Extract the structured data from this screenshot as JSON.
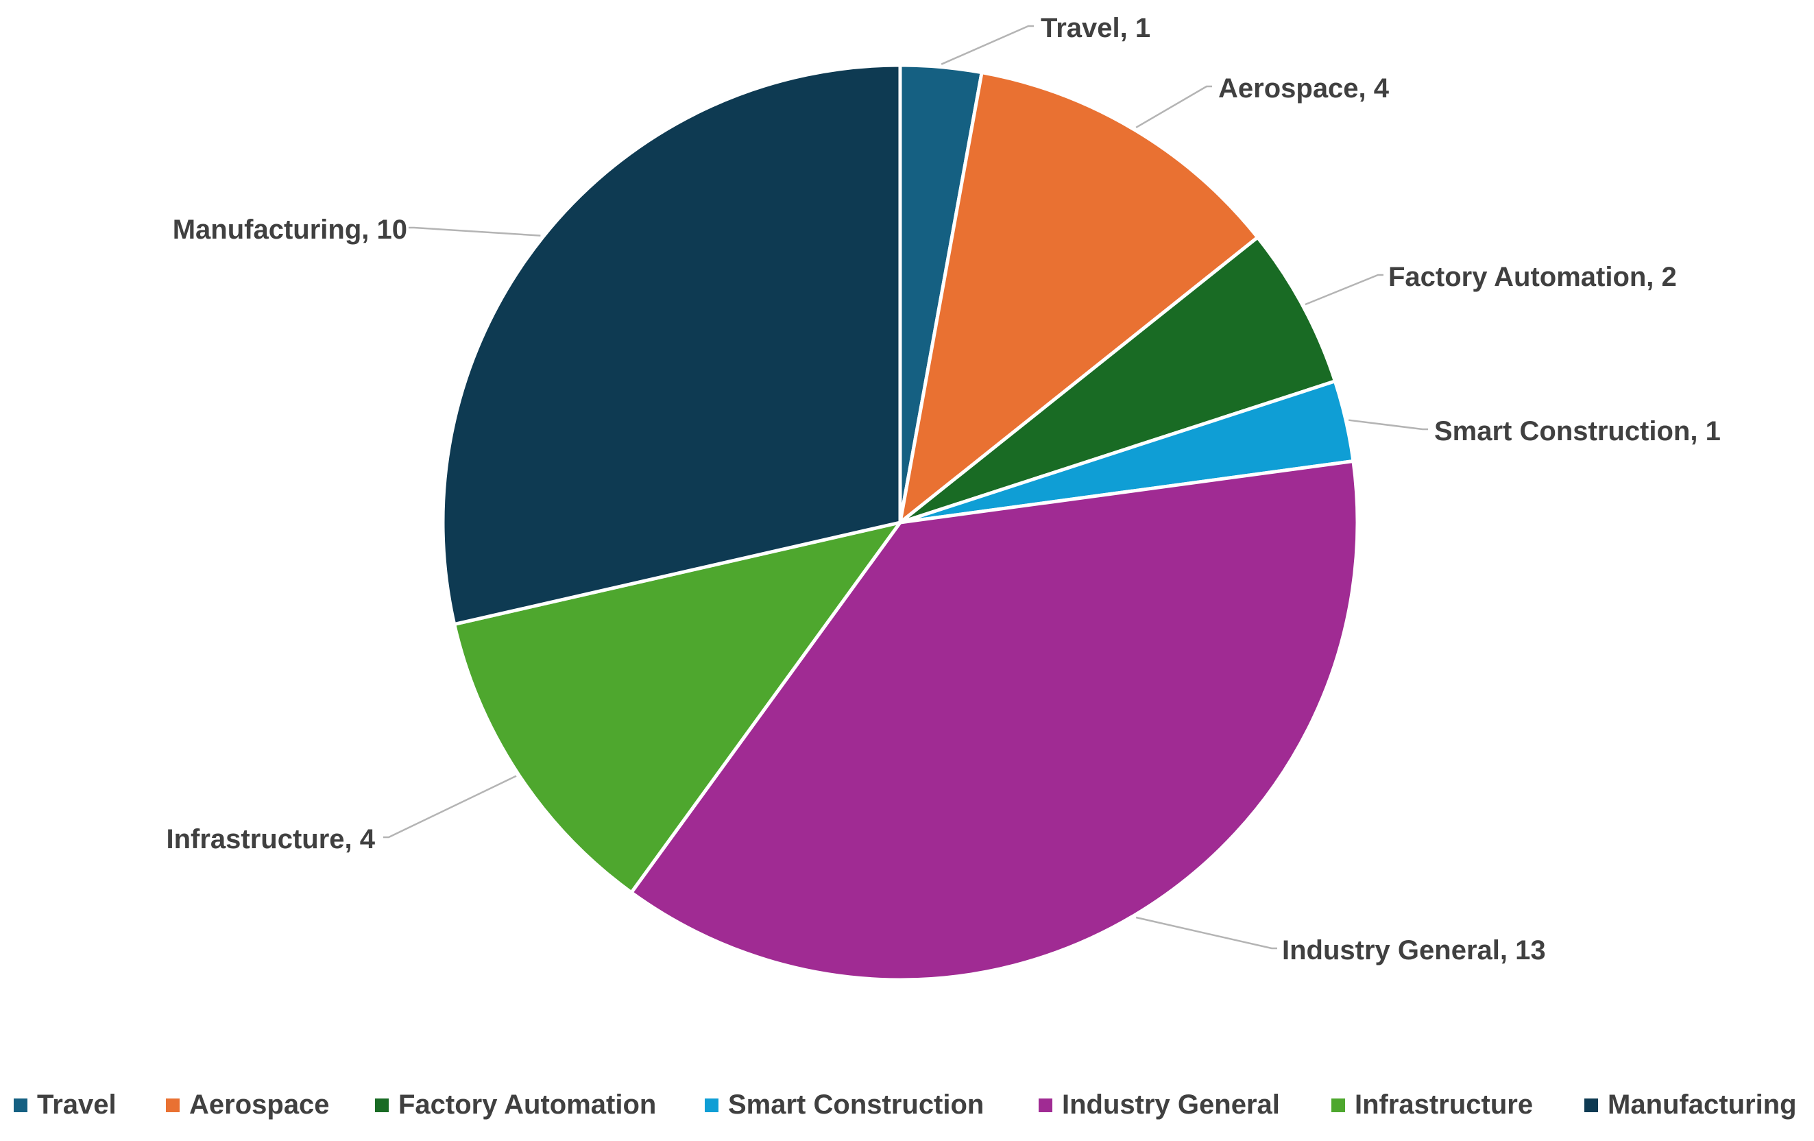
{
  "chart_data": {
    "type": "pie",
    "title": "",
    "categories": [
      "Travel",
      "Aerospace",
      "Factory Automation",
      "Smart Construction",
      "Industry General",
      "Infrastructure",
      "Manufacturing"
    ],
    "values": [
      1,
      4,
      2,
      1,
      13,
      4,
      10
    ],
    "colors": [
      "#156082",
      "#E97132",
      "#196B24",
      "#0F9ED5",
      "#A02B93",
      "#4EA72E",
      "#0E3A52"
    ],
    "data_labels": [
      "Travel, 1",
      "Aerospace, 4",
      "Factory Automation, 2",
      "Smart Construction, 1",
      "Industry General, 13",
      "Infrastructure, 4",
      "Manufacturing, 10"
    ],
    "start_angle_deg": 0,
    "direction": "clockwise",
    "legend": {
      "position": "bottom",
      "entries": [
        "Travel",
        "Aerospace",
        "Factory Automation",
        "Smart Construction",
        "Industry General",
        "Infrastructure",
        "Manufacturing"
      ]
    }
  }
}
